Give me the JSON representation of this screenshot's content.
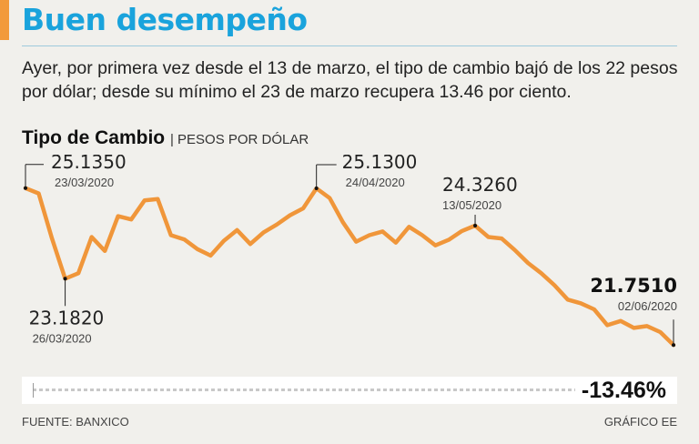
{
  "headline": "Buen desempeño",
  "intro": "Ayer, por primera vez desde el 13 de marzo, el tipo de cambio bajó de los 22 pesos por dólar; desde su mínimo el 23 de marzo recupera 13.46 por ciento.",
  "chart_title": "Tipo de Cambio",
  "chart_unit": "| PESOS POR DÓLAR",
  "source": "FUENTE: BANXICO",
  "credit": "GRÁFICO EE",
  "colors": {
    "line": "#f0963a",
    "headline": "#1aa3dc",
    "accent": "#f29a3a"
  },
  "change": {
    "label": "-13.46%"
  },
  "chart_data": {
    "type": "line",
    "series": [
      {
        "values": [
          25.135,
          25.02,
          24.05,
          23.182,
          23.3,
          24.08,
          23.78,
          24.53,
          24.46,
          24.87,
          24.9,
          24.12,
          24.03,
          23.82,
          23.68,
          24.0,
          24.23,
          23.93,
          24.18,
          24.35,
          24.55,
          24.7,
          25.13,
          24.92,
          24.4,
          23.98,
          24.12,
          24.2,
          23.96,
          24.3,
          24.12,
          23.9,
          24.02,
          24.21,
          24.326,
          24.08,
          24.05,
          23.8,
          23.52,
          23.3,
          23.04,
          22.73,
          22.65,
          22.52,
          22.18,
          22.27,
          22.12,
          22.16,
          22.03,
          21.751
        ]
      }
    ],
    "x_start": "23/03/2020",
    "x_end": "02/06/2020",
    "ylim": [
      21.5,
      25.7
    ],
    "grid": false,
    "annotations": [
      {
        "index": 0,
        "value": "25.1350",
        "date": "23/03/2020",
        "pos": "above-right",
        "bold": false
      },
      {
        "index": 3,
        "value": "23.1820",
        "date": "26/03/2020",
        "pos": "below",
        "bold": false
      },
      {
        "index": 22,
        "value": "25.1300",
        "date": "24/04/2020",
        "pos": "above-right",
        "bold": false
      },
      {
        "index": 34,
        "value": "24.3260",
        "date": "13/05/2020",
        "pos": "above",
        "bold": false
      },
      {
        "index": 49,
        "value": "21.7510",
        "date": "02/06/2020",
        "pos": "above-left",
        "bold": true
      }
    ]
  }
}
